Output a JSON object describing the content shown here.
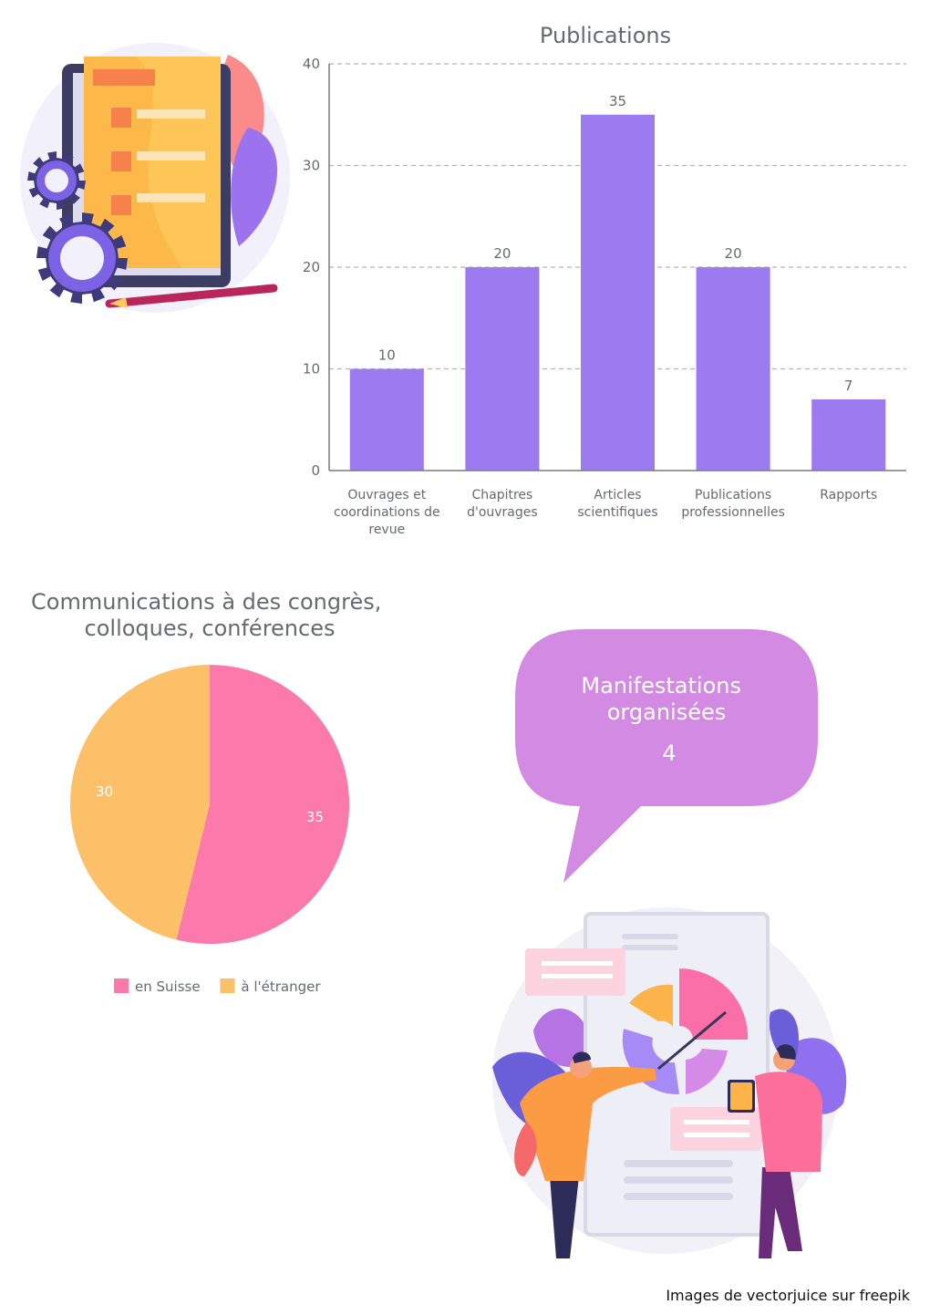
{
  "chart_data": [
    {
      "type": "bar",
      "title": "Publications",
      "categories": [
        [
          "Ouvrages et",
          "coordinations de",
          "revue"
        ],
        [
          "Chapitres",
          "d'ouvrages"
        ],
        [
          "Articles",
          "scientifiques"
        ],
        [
          "Publications",
          "professionnelles"
        ],
        [
          "Rapports"
        ]
      ],
      "values": [
        10,
        20,
        35,
        20,
        7
      ],
      "value_labels": [
        "10",
        "20",
        "35",
        "20",
        "7"
      ],
      "ylim": [
        0,
        40
      ],
      "yticks": [
        "0",
        "10",
        "20",
        "30",
        "40"
      ],
      "grid": true,
      "bar_color": "#9b7bef"
    },
    {
      "type": "pie",
      "title": [
        "Communications à des congrès,",
        "colloques, conférences"
      ],
      "labels": [
        "en Suisse",
        "à l'étranger"
      ],
      "values": [
        35,
        30
      ],
      "value_labels": [
        "35",
        "30"
      ],
      "colors": [
        "#fb7aab",
        "#fbc068"
      ],
      "legend": "bottom"
    }
  ],
  "callout": {
    "title": [
      "Manifestations",
      "organisées"
    ],
    "value": "4",
    "color": "#d38ae2"
  },
  "credit": "Images de vectorjuice sur freepik"
}
